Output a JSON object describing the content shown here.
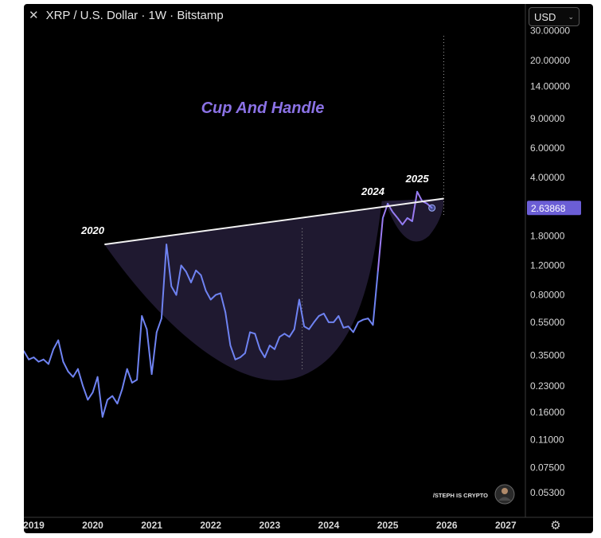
{
  "header": {
    "close_icon": "close-icon",
    "symbol": "XRP / U.S. Dollar · 1W · Bitstamp"
  },
  "currency_select": {
    "value": "USD",
    "icon": "chevron-down-icon"
  },
  "chart_data": {
    "type": "line",
    "title": "Cup And Handle",
    "scale": "log",
    "ylim": [
      0.04,
      38
    ],
    "xlim": [
      "2018-11",
      "2027-05"
    ],
    "y_ticks": [
      "30.00000",
      "20.00000",
      "14.00000",
      "9.00000",
      "6.00000",
      "4.00000",
      "1.80000",
      "1.20000",
      "0.80000",
      "0.55000",
      "0.35000",
      "0.23000",
      "0.16000",
      "0.11000",
      "0.07500",
      "0.05300"
    ],
    "x_ticks": [
      "2019",
      "2020",
      "2021",
      "2022",
      "2023",
      "2024",
      "2025",
      "2026",
      "2027"
    ],
    "current_price_label": "2.63868",
    "series": [
      {
        "x": [
          "2018-11",
          "2018-12",
          "2019-01",
          "2019-02",
          "2019-03",
          "2019-04",
          "2019-05",
          "2019-06",
          "2019-07",
          "2019-08",
          "2019-09",
          "2019-10",
          "2019-11",
          "2019-12",
          "2020-01",
          "2020-02",
          "2020-03",
          "2020-04",
          "2020-05",
          "2020-06",
          "2020-07",
          "2020-08",
          "2020-09",
          "2020-10",
          "2020-11",
          "2020-12",
          "2021-01",
          "2021-02",
          "2021-03",
          "2021-04",
          "2021-05",
          "2021-06",
          "2021-07",
          "2021-08",
          "2021-09",
          "2021-10",
          "2021-11",
          "2021-12",
          "2022-01",
          "2022-02",
          "2022-03",
          "2022-04",
          "2022-05",
          "2022-06",
          "2022-07",
          "2022-08",
          "2022-09",
          "2022-10",
          "2022-11",
          "2022-12",
          "2023-01",
          "2023-02",
          "2023-03",
          "2023-04",
          "2023-05",
          "2023-06",
          "2023-07",
          "2023-08",
          "2023-09",
          "2023-10",
          "2023-11",
          "2023-12",
          "2024-01",
          "2024-02",
          "2024-03",
          "2024-04",
          "2024-05",
          "2024-06",
          "2024-07",
          "2024-08",
          "2024-09",
          "2024-10",
          "2024-11",
          "2024-12",
          "2025-01",
          "2025-02",
          "2025-03",
          "2025-04",
          "2025-05",
          "2025-06",
          "2025-07",
          "2025-08",
          "2025-09",
          "2025-10"
        ],
        "values": [
          0.37,
          0.33,
          0.34,
          0.32,
          0.33,
          0.31,
          0.38,
          0.43,
          0.32,
          0.28,
          0.26,
          0.29,
          0.23,
          0.19,
          0.21,
          0.26,
          0.15,
          0.19,
          0.2,
          0.18,
          0.22,
          0.29,
          0.24,
          0.25,
          0.6,
          0.5,
          0.27,
          0.48,
          0.58,
          1.6,
          0.9,
          0.8,
          1.2,
          1.1,
          0.95,
          1.12,
          1.05,
          0.85,
          0.75,
          0.8,
          0.82,
          0.63,
          0.4,
          0.33,
          0.34,
          0.36,
          0.48,
          0.47,
          0.38,
          0.34,
          0.4,
          0.38,
          0.45,
          0.47,
          0.45,
          0.5,
          0.75,
          0.52,
          0.5,
          0.55,
          0.6,
          0.62,
          0.55,
          0.55,
          0.6,
          0.51,
          0.52,
          0.48,
          0.55,
          0.57,
          0.58,
          0.53,
          1.1,
          2.3,
          2.8,
          2.5,
          2.3,
          2.1,
          2.3,
          2.2,
          3.3,
          2.9,
          2.8,
          2.64
        ]
      }
    ],
    "annotations": [
      "2020",
      "2024",
      "2025"
    ],
    "watermark_handle": "/STEPH IS CRYPTO",
    "colors": {
      "line": "#6f83f2",
      "line_recent": "#9b7bf2",
      "title": "#8b72e6",
      "cup_fill": "#2a2240",
      "price_badge": "#6b5ed6",
      "background": "#000000"
    }
  }
}
